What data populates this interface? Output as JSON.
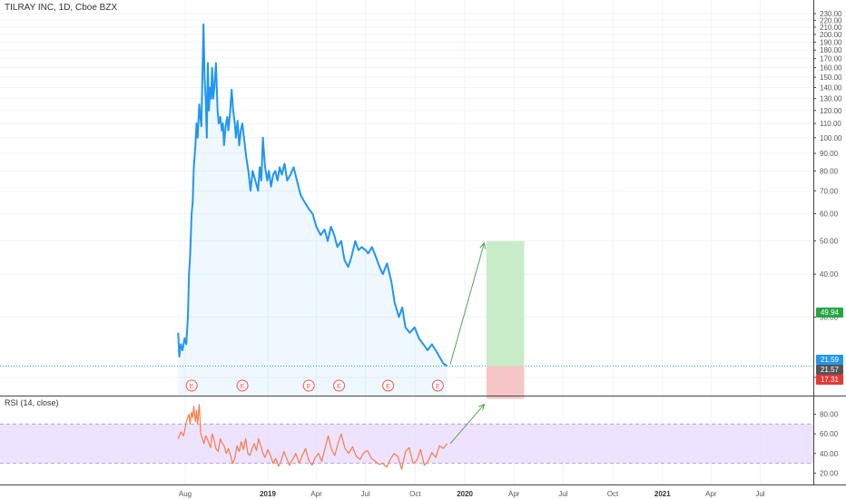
{
  "header": {
    "symbol_title": "TILRAY INC, 1D, Cboe BZX"
  },
  "rsi_panel": {
    "title": "RSI (14, close)"
  },
  "price_tags": {
    "target": "49.94",
    "current": "21.59",
    "close": "21.57",
    "stop": "17.31"
  },
  "colors": {
    "price_line": "#2196f3",
    "rsi_line": "#f57c4a",
    "rsi_band": "#e8d9ff",
    "target_tag": "#26a541",
    "current_tag": "#2196f3",
    "close_tag": "#555555",
    "stop_tag": "#e53935",
    "profit_zone": "#c8ecc8",
    "loss_zone": "#f6c6c6",
    "arrow": "#5aa05a",
    "earnings_marker": "#ef5350"
  },
  "earnings_marker_label": "E",
  "chart_data": [
    {
      "type": "line",
      "title": "TILRAY INC, 1D, Cboe BZX",
      "series": [
        {
          "x": [
            "2018-07-19",
            "2018-07-21",
            "2018-07-24",
            "2018-07-27",
            "2018-07-31",
            "2018-08-03",
            "2018-08-06",
            "2018-08-08",
            "2018-08-10",
            "2018-08-13",
            "2018-08-15",
            "2018-08-17",
            "2018-08-20",
            "2018-08-22",
            "2018-08-24",
            "2018-08-27",
            "2018-08-29",
            "2018-08-31",
            "2018-09-04",
            "2018-09-06",
            "2018-09-08",
            "2018-09-10",
            "2018-09-12",
            "2018-09-14",
            "2018-09-16",
            "2018-09-18",
            "2018-09-20",
            "2018-09-22",
            "2018-09-24",
            "2018-09-27",
            "2018-09-30",
            "2018-10-02",
            "2018-10-05",
            "2018-10-08",
            "2018-10-10",
            "2018-10-12",
            "2018-10-15",
            "2018-10-18",
            "2018-10-20",
            "2018-10-23",
            "2018-10-26",
            "2018-10-29",
            "2018-11-01",
            "2018-11-03",
            "2018-11-06",
            "2018-11-09",
            "2018-11-12",
            "2018-11-15",
            "2018-11-18",
            "2018-11-22",
            "2018-11-26",
            "2018-11-30",
            "2018-12-04",
            "2018-12-08",
            "2018-12-12",
            "2018-12-14",
            "2018-12-17",
            "2018-12-20",
            "2018-12-23",
            "2018-12-27",
            "2018-12-31",
            "2019-01-03",
            "2019-01-07",
            "2019-01-11",
            "2019-01-15",
            "2019-01-19",
            "2019-01-23",
            "2019-01-27",
            "2019-02-01",
            "2019-02-06",
            "2019-02-12",
            "2019-02-18",
            "2019-02-25",
            "2019-03-03",
            "2019-03-10",
            "2019-03-18",
            "2019-03-25",
            "2019-04-01",
            "2019-04-09",
            "2019-04-16",
            "2019-04-22",
            "2019-04-28",
            "2019-05-04",
            "2019-05-10",
            "2019-05-17",
            "2019-05-23",
            "2019-05-30",
            "2019-06-05",
            "2019-06-12",
            "2019-06-18",
            "2019-06-24",
            "2019-07-01",
            "2019-07-06",
            "2019-07-13",
            "2019-07-20",
            "2019-07-27",
            "2019-08-02",
            "2019-08-10",
            "2019-08-18",
            "2019-08-24",
            "2019-09-01",
            "2019-09-07",
            "2019-09-13",
            "2019-09-21",
            "2019-09-30",
            "2019-10-08",
            "2019-10-16",
            "2019-10-24",
            "2019-11-01",
            "2019-11-08",
            "2019-11-15",
            "2019-11-22",
            "2019-11-29"
          ],
          "y": [
            27,
            23,
            25,
            24,
            26,
            25,
            30,
            40,
            45,
            60,
            65,
            82,
            95,
            110,
            100,
            125,
            115,
            108,
            214,
            150,
            130,
            100,
            165,
            120,
            140,
            130,
            160,
            130,
            140,
            165,
            120,
            110,
            115,
            105,
            110,
            95,
            108,
            115,
            105,
            118,
            138,
            120,
            110,
            100,
            112,
            95,
            105,
            110,
            100,
            88,
            80,
            70,
            80,
            76,
            72,
            70,
            82,
            75,
            100,
            82,
            75,
            80,
            72,
            78,
            80,
            75,
            82,
            78,
            84,
            75,
            78,
            82,
            74,
            68,
            65,
            62,
            60,
            55,
            52,
            54,
            50,
            55,
            52,
            48,
            50,
            44,
            42,
            45,
            50,
            47,
            48,
            47,
            46,
            48,
            45,
            42,
            40,
            43,
            38,
            33,
            30,
            32,
            28,
            27,
            28,
            26,
            25,
            24,
            25,
            24,
            23,
            22,
            21.57
          ]
        },
        {
          "name": "RSI",
          "x": [
            "2018-07-19",
            "2018-07-24",
            "2018-07-29",
            "2018-08-03",
            "2018-08-08",
            "2018-08-10",
            "2018-08-13",
            "2018-08-15",
            "2018-08-17",
            "2018-08-20",
            "2018-08-22",
            "2018-08-24",
            "2018-08-27",
            "2018-08-30",
            "2018-09-02",
            "2018-09-05",
            "2018-09-08",
            "2018-09-11",
            "2018-09-14",
            "2018-09-17",
            "2018-09-20",
            "2018-09-23",
            "2018-09-27",
            "2018-10-01",
            "2018-10-05",
            "2018-10-09",
            "2018-10-12",
            "2018-10-16",
            "2018-10-20",
            "2018-10-24",
            "2018-10-28",
            "2018-11-01",
            "2018-11-05",
            "2018-11-09",
            "2018-11-13",
            "2018-11-17",
            "2018-11-21",
            "2018-11-25",
            "2018-11-29",
            "2018-12-03",
            "2018-12-07",
            "2018-12-11",
            "2018-12-15",
            "2018-12-19",
            "2018-12-23",
            "2018-12-27",
            "2019-01-01",
            "2019-01-06",
            "2019-01-11",
            "2019-01-16",
            "2019-01-21",
            "2019-01-26",
            "2019-01-31",
            "2019-02-05",
            "2019-02-10",
            "2019-02-16",
            "2019-02-22",
            "2019-02-28",
            "2019-03-06",
            "2019-03-12",
            "2019-03-18",
            "2019-03-24",
            "2019-03-30",
            "2019-04-05",
            "2019-04-11",
            "2019-04-17",
            "2019-04-23",
            "2019-04-29",
            "2019-05-05",
            "2019-05-11",
            "2019-05-17",
            "2019-05-24",
            "2019-05-31",
            "2019-06-07",
            "2019-06-14",
            "2019-06-21",
            "2019-06-28",
            "2019-07-05",
            "2019-07-12",
            "2019-07-19",
            "2019-07-26",
            "2019-08-02",
            "2019-08-09",
            "2019-08-16",
            "2019-08-23",
            "2019-08-30",
            "2019-09-06",
            "2019-09-13",
            "2019-09-20",
            "2019-09-27",
            "2019-10-04",
            "2019-10-11",
            "2019-10-18",
            "2019-10-25",
            "2019-11-01",
            "2019-11-08",
            "2019-11-15",
            "2019-11-22",
            "2019-11-29"
          ],
          "y": [
            55,
            62,
            58,
            72,
            80,
            70,
            82,
            76,
            88,
            72,
            84,
            70,
            90,
            60,
            55,
            50,
            58,
            55,
            50,
            46,
            60,
            55,
            45,
            42,
            55,
            50,
            48,
            40,
            45,
            38,
            30,
            35,
            48,
            42,
            52,
            44,
            55,
            40,
            38,
            45,
            50,
            43,
            55,
            48,
            40,
            36,
            44,
            38,
            30,
            35,
            27,
            33,
            42,
            35,
            28,
            34,
            40,
            30,
            38,
            45,
            33,
            28,
            36,
            40,
            32,
            45,
            58,
            44,
            38,
            50,
            60,
            45,
            40,
            47,
            37,
            34,
            41,
            43,
            35,
            32,
            29,
            30,
            26,
            34,
            40,
            37,
            24,
            42,
            46,
            30,
            33,
            44,
            28,
            32,
            41,
            36,
            48,
            45,
            50
          ]
        }
      ],
      "axes": {
        "price_y_ticks": [
          "230.00",
          "220.00",
          "210.00",
          "200.00",
          "190.00",
          "180.00",
          "170.00",
          "160.00",
          "150.00",
          "140.00",
          "130.00",
          "120.00",
          "110.00",
          "100.00",
          "90.00",
          "80.00",
          "70.00",
          "60.00",
          "50.00",
          "40.00",
          "30.00",
          "20.00"
        ],
        "price_scale": "log",
        "rsi_y_ticks": [
          "80.00",
          "60.00",
          "40.00",
          "20.00"
        ],
        "rsi_band": [
          30,
          70
        ],
        "x_ticks": [
          {
            "label": "Aug",
            "date": "2018-08-01",
            "year": false
          },
          {
            "label": "2019",
            "date": "2019-01-01",
            "year": true
          },
          {
            "label": "Apr",
            "date": "2019-04-01",
            "year": false
          },
          {
            "label": "Jul",
            "date": "2019-07-01",
            "year": false
          },
          {
            "label": "Oct",
            "date": "2019-10-01",
            "year": false
          },
          {
            "label": "2020",
            "date": "2020-01-01",
            "year": true
          },
          {
            "label": "Apr",
            "date": "2020-04-01",
            "year": false
          },
          {
            "label": "Jul",
            "date": "2020-07-01",
            "year": false
          },
          {
            "label": "Oct",
            "date": "2020-10-01",
            "year": false
          },
          {
            "label": "2021",
            "date": "2021-01-01",
            "year": true
          },
          {
            "label": "Apr",
            "date": "2021-04-01",
            "year": false
          },
          {
            "label": "Jul",
            "date": "2021-07-01",
            "year": false
          }
        ]
      },
      "earnings_dates": [
        "2018-08-13",
        "2018-11-15",
        "2019-03-18",
        "2019-05-13",
        "2019-08-12",
        "2019-11-12"
      ],
      "position": {
        "entry": 21.59,
        "target": 49.94,
        "stop": 17.31
      }
    }
  ]
}
